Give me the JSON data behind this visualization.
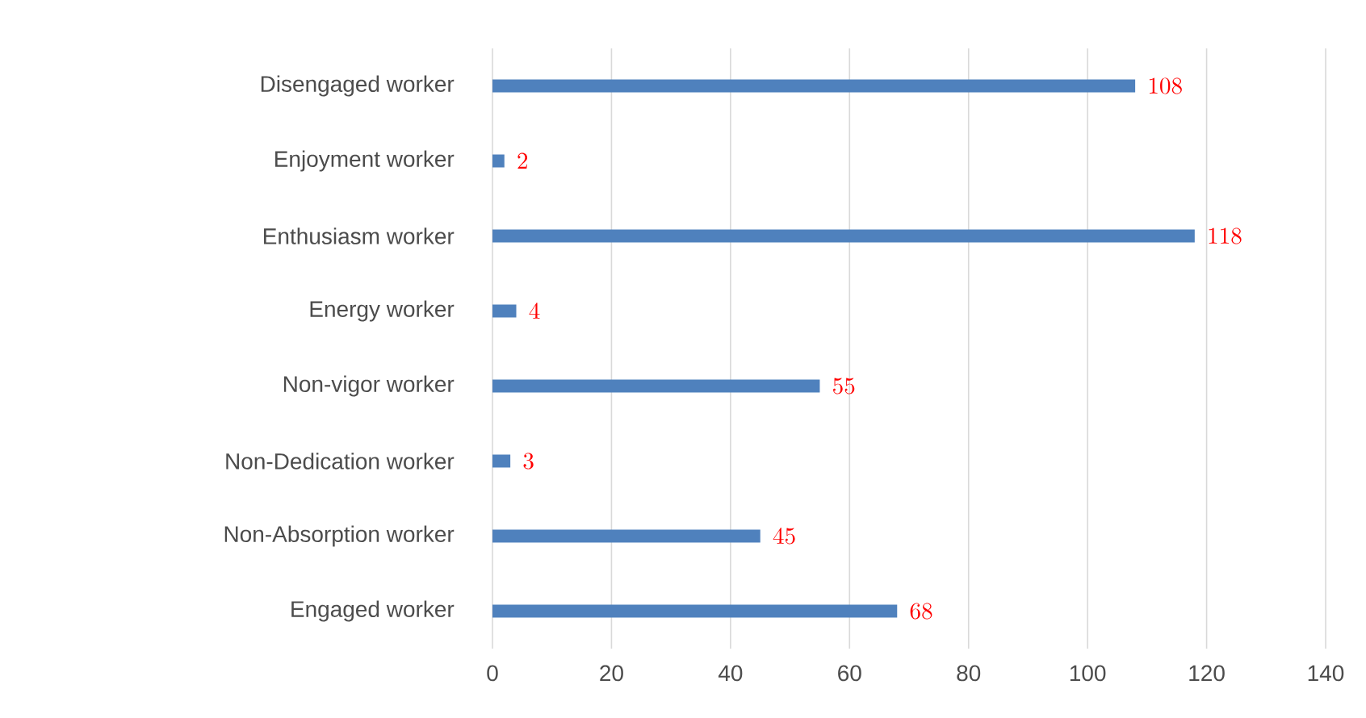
{
  "chart_data": {
    "type": "bar",
    "orientation": "horizontal",
    "categories": [
      "Disengaged worker",
      "Enjoyment worker",
      "Enthusiasm worker",
      "Energy worker",
      "Non-vigor worker",
      "Non-Dedication worker",
      "Non-Absorption worker",
      "Engaged worker"
    ],
    "values": [
      108,
      2,
      118,
      4,
      55,
      3,
      45,
      68
    ],
    "color": "#4f81bd",
    "xlim": [
      0,
      140
    ],
    "xticks": [
      0,
      20,
      40,
      60,
      80,
      100,
      120,
      140
    ],
    "grid": "x",
    "data_labels": true
  }
}
